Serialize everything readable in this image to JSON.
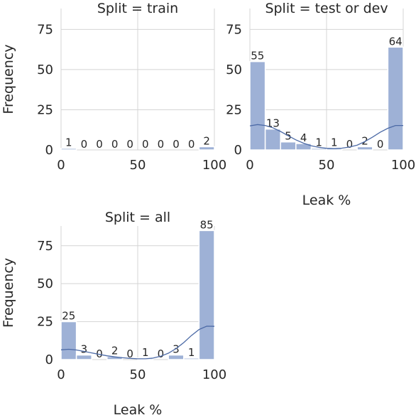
{
  "chart_data": [
    {
      "type": "bar",
      "title": "Split = train",
      "xlabel": "",
      "ylabel": "Frequency",
      "xlim": [
        0,
        100
      ],
      "ylim": [
        0,
        88
      ],
      "yticks": [
        0,
        25,
        50,
        75
      ],
      "xticks": [
        0,
        50,
        100
      ],
      "bin_edges": [
        0,
        10,
        20,
        30,
        40,
        50,
        60,
        70,
        80,
        90,
        100
      ],
      "values": [
        1,
        0,
        0,
        0,
        0,
        0,
        0,
        0,
        0,
        2
      ],
      "kde": false,
      "grid": true
    },
    {
      "type": "bar",
      "title": "Split = test or dev",
      "xlabel": "Leak %",
      "ylabel": "",
      "xlim": [
        0,
        100
      ],
      "ylim": [
        0,
        88
      ],
      "yticks": [
        0,
        25,
        50,
        75
      ],
      "xticks": [
        0,
        50,
        100
      ],
      "bin_edges": [
        0,
        10,
        20,
        30,
        40,
        50,
        60,
        70,
        80,
        90,
        100
      ],
      "values": [
        55,
        13,
        5,
        4,
        1,
        1,
        0,
        2,
        0,
        64
      ],
      "kde": true,
      "kde_curve": [
        [
          0,
          15
        ],
        [
          5,
          15.8
        ],
        [
          10,
          15.2
        ],
        [
          15,
          13.8
        ],
        [
          20,
          11.5
        ],
        [
          25,
          8.8
        ],
        [
          30,
          6.3
        ],
        [
          35,
          4.2
        ],
        [
          40,
          2.6
        ],
        [
          45,
          1.6
        ],
        [
          50,
          1.0
        ],
        [
          55,
          0.9
        ],
        [
          60,
          1.1
        ],
        [
          65,
          1.8
        ],
        [
          70,
          3.0
        ],
        [
          75,
          5.2
        ],
        [
          80,
          8.0
        ],
        [
          85,
          11.0
        ],
        [
          90,
          13.5
        ],
        [
          95,
          15.2
        ],
        [
          100,
          15.2
        ]
      ],
      "grid": true
    },
    {
      "type": "bar",
      "title": "Split = all",
      "xlabel": "Leak %",
      "ylabel": "Frequency",
      "xlim": [
        0,
        100
      ],
      "ylim": [
        0,
        88
      ],
      "yticks": [
        0,
        25,
        50,
        75
      ],
      "xticks": [
        0,
        50,
        100
      ],
      "bin_edges": [
        0,
        10,
        20,
        30,
        40,
        50,
        60,
        70,
        80,
        90,
        100
      ],
      "values": [
        25,
        3,
        0,
        2,
        0,
        1,
        0,
        3,
        1,
        85
      ],
      "kde": true,
      "kde_curve": [
        [
          0,
          6.4
        ],
        [
          5,
          6.8
        ],
        [
          10,
          6.3
        ],
        [
          15,
          5.4
        ],
        [
          20,
          4.4
        ],
        [
          25,
          3.4
        ],
        [
          30,
          2.5
        ],
        [
          35,
          1.8
        ],
        [
          40,
          1.2
        ],
        [
          45,
          0.8
        ],
        [
          50,
          0.5
        ],
        [
          55,
          0.5
        ],
        [
          60,
          1.0
        ],
        [
          65,
          2.2
        ],
        [
          70,
          4.2
        ],
        [
          75,
          7.2
        ],
        [
          80,
          11.2
        ],
        [
          85,
          15.8
        ],
        [
          90,
          19.8
        ],
        [
          95,
          22.0
        ],
        [
          100,
          21.9
        ]
      ],
      "grid": true
    }
  ]
}
